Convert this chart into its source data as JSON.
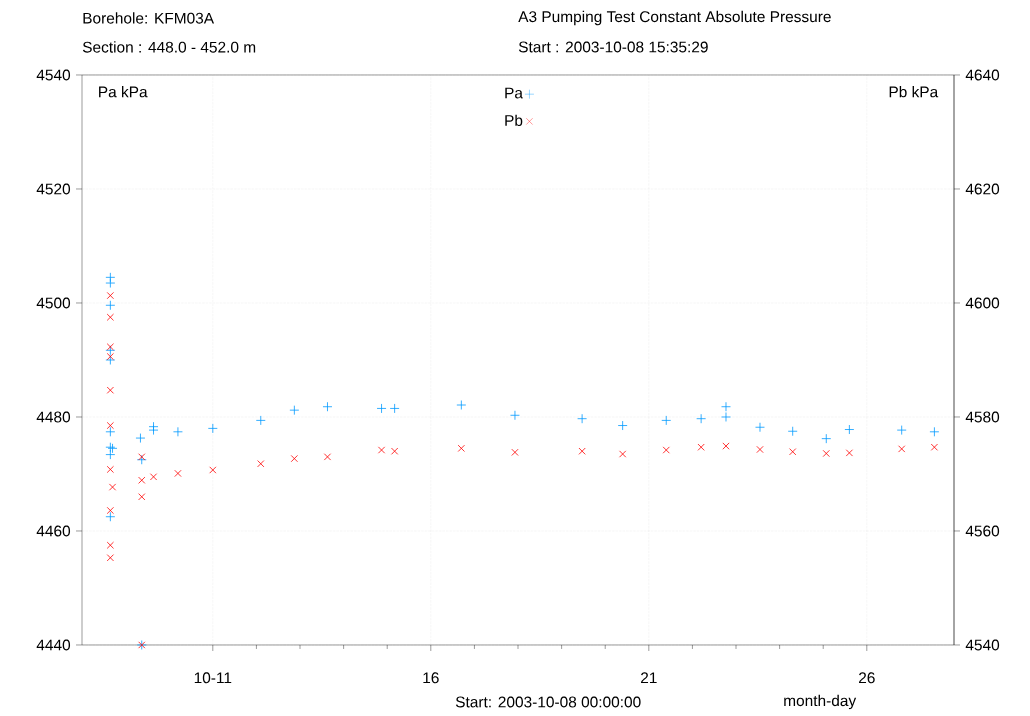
{
  "chart_data": {
    "type": "scatter",
    "title": "A3 Pumping Test Constant Absolute Pressure",
    "subtitle": "Start : 2003-10-08 15:35:29",
    "xlabel": "month-day",
    "ylabel": "Pa kPa",
    "y2label": "Pb kPa",
    "annotations": [
      "Borehole: KFM03A",
      "Section : 448.0 - 452.0 m",
      "Start: 2003-10-08 00:00:00"
    ],
    "xlim": [
      "2003-10-08",
      "2003-10-28"
    ],
    "xticks": [
      {
        "value": "2003-10-11",
        "label": "10-11"
      },
      {
        "value": "2003-10-16",
        "label": "16"
      },
      {
        "value": "2003-10-21",
        "label": "21"
      },
      {
        "value": "2003-10-26",
        "label": "26"
      }
    ],
    "ylim": [
      4440,
      4540
    ],
    "yticks": [
      4440,
      4460,
      4480,
      4500,
      4520,
      4540
    ],
    "y2lim": [
      4540,
      4640
    ],
    "y2ticks": [
      4540,
      4560,
      4580,
      4600,
      4620,
      4640
    ],
    "grid": true,
    "legend": "top",
    "series": [
      {
        "name": "Pa",
        "color": "#0099ff",
        "axis": "y",
        "marker": "plus",
        "x": [
          "2003-10-08T15:36",
          "2003-10-08T15:36",
          "2003-10-08T15:36",
          "2003-10-08T15:36",
          "2003-10-08T15:36",
          "2003-10-08T15:36",
          "2003-10-08T15:36",
          "2003-10-08T15:36",
          "2003-10-08T15:36",
          "2003-10-08T16:48",
          "2003-10-09T08:10",
          "2003-10-09T08:53",
          "2003-10-09T08:53",
          "2003-10-09T15:22",
          "2003-10-09T15:22",
          "2003-10-10T04:48",
          "2003-10-11T00:00",
          "2003-10-12T02:24",
          "2003-10-12T20:53",
          "2003-10-13T15:07",
          "2003-10-14T20:53",
          "2003-10-15T04:05",
          "2003-10-16T16:48",
          "2003-10-17T22:19",
          "2003-10-19T11:17",
          "2003-10-20T09:36",
          "2003-10-21T09:36",
          "2003-10-22T04:48",
          "2003-10-22T18:29",
          "2003-10-22T18:29",
          "2003-10-23T13:12",
          "2003-10-24T07:12",
          "2003-10-25T01:41",
          "2003-10-25T14:24",
          "2003-10-26T19:12",
          "2003-10-27T13:12"
        ],
        "values": [
          4504.5,
          4503.5,
          4499.6,
          4491.7,
          4490.0,
          4477.4,
          4474.7,
          4473.4,
          4462.5,
          4474.5,
          4476.3,
          4440,
          4472.5,
          4477.7,
          4478.3,
          4477.4,
          4478.0,
          4479.4,
          4481.2,
          4481.8,
          4481.5,
          4481.5,
          4482.1,
          4480.3,
          4479.7,
          4478.5,
          4479.4,
          4479.7,
          4480.0,
          4481.8,
          4478.2,
          4477.5,
          4476.2,
          4477.8,
          4477.7,
          4477.4
        ]
      },
      {
        "name": "Pb",
        "color": "#ff0000",
        "axis": "y2",
        "marker": "cross",
        "x": [
          "2003-10-08T15:36",
          "2003-10-08T15:36",
          "2003-10-08T15:36",
          "2003-10-08T15:36",
          "2003-10-08T15:36",
          "2003-10-08T15:36",
          "2003-10-08T15:36",
          "2003-10-08T15:36",
          "2003-10-08T15:36",
          "2003-10-08T15:36",
          "2003-10-08T16:48",
          "2003-10-09T08:53",
          "2003-10-09T08:53",
          "2003-10-09T08:53",
          "2003-10-09T08:53",
          "2003-10-09T15:22",
          "2003-10-10T04:48",
          "2003-10-11T00:00",
          "2003-10-12T02:24",
          "2003-10-12T20:53",
          "2003-10-13T15:07",
          "2003-10-14T20:53",
          "2003-10-15T04:05",
          "2003-10-16T16:48",
          "2003-10-17T22:19",
          "2003-10-19T11:17",
          "2003-10-20T09:36",
          "2003-10-21T09:36",
          "2003-10-22T04:48",
          "2003-10-22T18:29",
          "2003-10-23T13:12",
          "2003-10-24T07:12",
          "2003-10-25T01:41",
          "2003-10-25T14:24",
          "2003-10-26T19:12",
          "2003-10-27T13:12"
        ],
        "values": [
          4601.3,
          4597.5,
          4592.3,
          4590.6,
          4584.7,
          4578.5,
          4570.8,
          4563.6,
          4557.5,
          4555.3,
          4567.7,
          4540,
          4566,
          4573,
          4568.9,
          4569.5,
          4570.1,
          4570.7,
          4571.8,
          4572.7,
          4573.0,
          4574.2,
          4574.0,
          4574.5,
          4573.8,
          4574.0,
          4573.5,
          4574.2,
          4574.7,
          4574.9,
          4574.3,
          4573.9,
          4573.6,
          4573.7,
          4574.4,
          4574.7
        ]
      }
    ]
  }
}
